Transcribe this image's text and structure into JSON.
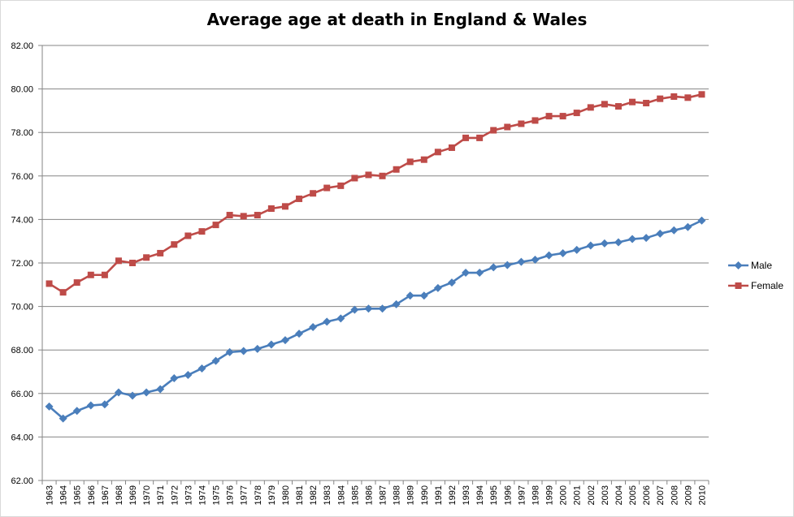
{
  "chart_data": {
    "type": "line",
    "title": "Average age at death in England & Wales",
    "xlabel": "",
    "ylabel": "",
    "ylim": [
      62,
      82
    ],
    "yticks": [
      "62.00",
      "64.00",
      "66.00",
      "68.00",
      "70.00",
      "72.00",
      "74.00",
      "76.00",
      "78.00",
      "80.00",
      "82.00"
    ],
    "grid": true,
    "legend_position": "right",
    "x": [
      "1963",
      "1964",
      "1965",
      "1966",
      "1967",
      "1968",
      "1969",
      "1970",
      "1971",
      "1972",
      "1973",
      "1974",
      "1975",
      "1976",
      "1977",
      "1978",
      "1979",
      "1980",
      "1981",
      "1982",
      "1983",
      "1984",
      "1985",
      "1986",
      "1987",
      "1988",
      "1989",
      "1990",
      "1991",
      "1992",
      "1993",
      "1994",
      "1995",
      "1996",
      "1997",
      "1998",
      "1999",
      "2000",
      "2001",
      "2002",
      "2003",
      "2004",
      "2005",
      "2006",
      "2007",
      "2008",
      "2009",
      "2010"
    ],
    "series": [
      {
        "name": "Male",
        "color": "#4a7ebb",
        "marker": "diamond",
        "values": [
          65.4,
          64.85,
          65.2,
          65.45,
          65.5,
          66.05,
          65.9,
          66.05,
          66.2,
          66.7,
          66.85,
          67.15,
          67.5,
          67.9,
          67.95,
          68.05,
          68.25,
          68.45,
          68.75,
          69.05,
          69.3,
          69.45,
          69.85,
          69.9,
          69.9,
          70.1,
          70.5,
          70.5,
          70.85,
          71.1,
          71.55,
          71.55,
          71.8,
          71.9,
          72.05,
          72.15,
          72.35,
          72.45,
          72.6,
          72.8,
          72.9,
          72.95,
          73.1,
          73.15,
          73.35,
          73.5,
          73.65,
          73.95
        ]
      },
      {
        "name": "Female",
        "color": "#be4b48",
        "marker": "square",
        "values": [
          71.05,
          70.65,
          71.1,
          71.45,
          71.45,
          72.1,
          72.0,
          72.25,
          72.45,
          72.85,
          73.25,
          73.45,
          73.75,
          74.2,
          74.15,
          74.2,
          74.5,
          74.6,
          74.95,
          75.2,
          75.45,
          75.55,
          75.9,
          76.05,
          76.0,
          76.3,
          76.65,
          76.75,
          77.1,
          77.3,
          77.75,
          77.75,
          78.1,
          78.25,
          78.4,
          78.55,
          78.75,
          78.75,
          78.9,
          79.15,
          79.3,
          79.2,
          79.4,
          79.35,
          79.55,
          79.65,
          79.6,
          79.75
        ]
      }
    ]
  }
}
